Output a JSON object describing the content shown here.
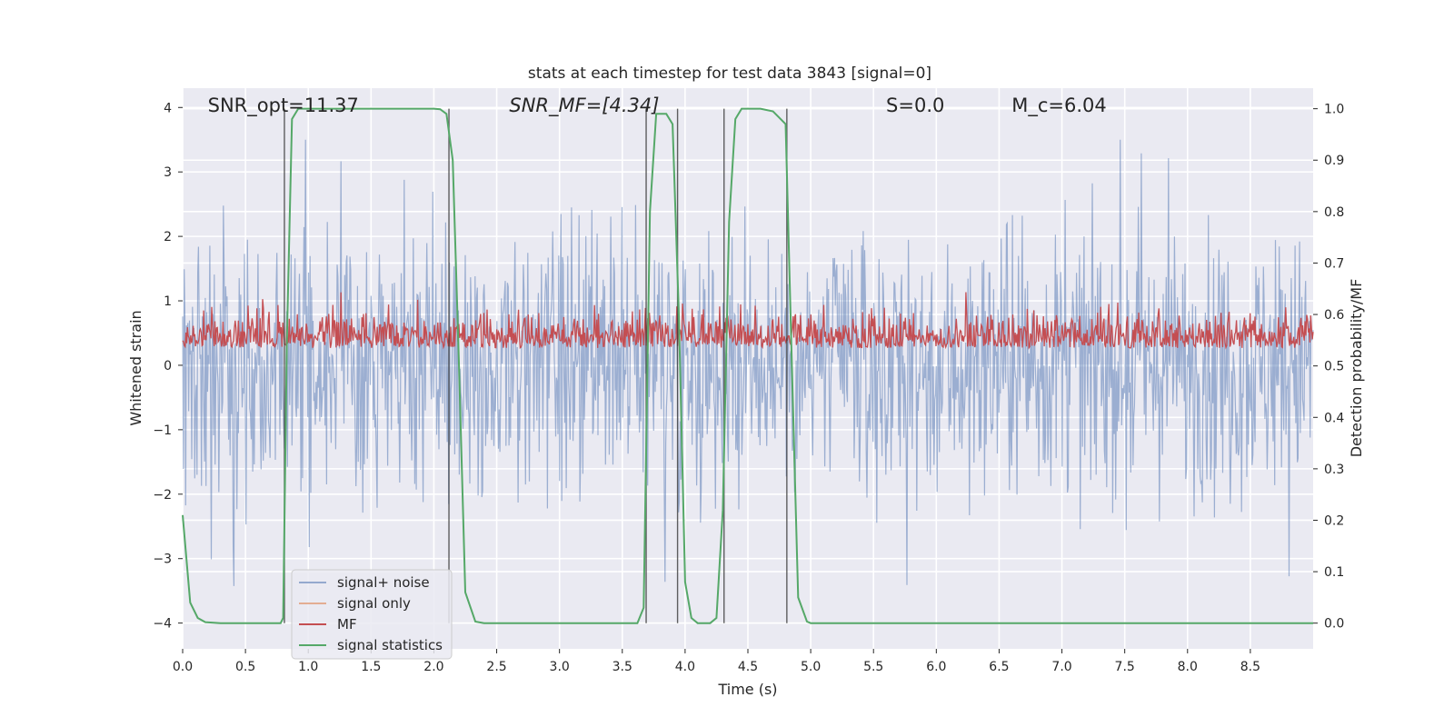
{
  "chart_data": {
    "type": "line",
    "title": "stats at each timestep for test data 3843 [signal=0]",
    "xlabel": "Time (s)",
    "ylabel_left": "Whitened strain",
    "ylabel_right": "Detection probability/MF",
    "xlim": [
      0.0,
      9.0
    ],
    "ylim_left": [
      -4.4,
      4.3
    ],
    "ylim_right": [
      -0.05,
      1.04
    ],
    "x_ticks": [
      0.0,
      0.5,
      1.0,
      1.5,
      2.0,
      2.5,
      3.0,
      3.5,
      4.0,
      4.5,
      5.0,
      5.5,
      6.0,
      6.5,
      7.0,
      7.5,
      8.0,
      8.5
    ],
    "x_tick_labels": [
      "0.0",
      "0.5",
      "1.0",
      "1.5",
      "2.0",
      "2.5",
      "3.0",
      "3.5",
      "4.0",
      "4.5",
      "5.0",
      "5.5",
      "6.0",
      "6.5",
      "7.0",
      "7.5",
      "8.0",
      "8.5"
    ],
    "y_ticks_left": [
      4,
      3,
      2,
      1,
      0,
      -1,
      -2,
      -3,
      -4
    ],
    "y_tick_labels_left": [
      "4",
      "3",
      "2",
      "1",
      "0",
      "−1",
      "−2",
      "−3",
      "−4"
    ],
    "y_ticks_right": [
      1.0,
      0.9,
      0.8,
      0.7,
      0.6,
      0.5,
      0.4,
      0.3,
      0.2,
      0.1,
      0.0
    ],
    "y_tick_labels_right": [
      "1.0",
      "0.9",
      "0.8",
      "0.7",
      "0.6",
      "0.5",
      "0.4",
      "0.3",
      "0.2",
      "0.1",
      "0.0"
    ],
    "annotations": [
      {
        "label": "SNR_opt=11.37",
        "x": 0.2
      },
      {
        "label": "SNR_MF=[4.34]",
        "x": 2.6
      },
      {
        "label": "S=0.0",
        "x": 5.6
      },
      {
        "label": "M_c=6.04",
        "x": 6.6
      }
    ],
    "vertical_lines": [
      0.81,
      2.12,
      3.69,
      3.94,
      4.31,
      4.81
    ],
    "series": [
      {
        "name": "signal+ noise",
        "color": "#4c72b0",
        "axis": "left",
        "envelope": {
          "mean": 0.0,
          "typical_amplitude": 1.4,
          "max_amplitude": 3.9
        }
      },
      {
        "name": "signal only",
        "color": "#dd8452",
        "axis": "left",
        "values": []
      },
      {
        "name": "MF",
        "color": "#c44e52",
        "axis": "right",
        "envelope": {
          "min": 0.5,
          "max": 0.65
        }
      },
      {
        "name": "signal statistics",
        "color": "#55a868",
        "axis": "right",
        "x": [
          0.0,
          0.06,
          0.12,
          0.18,
          0.3,
          0.5,
          0.78,
          0.8,
          0.83,
          0.87,
          0.92,
          1.0,
          1.5,
          2.0,
          2.05,
          2.1,
          2.15,
          2.2,
          2.25,
          2.33,
          2.4,
          3.0,
          3.62,
          3.67,
          3.72,
          3.77,
          3.85,
          3.9,
          3.95,
          4.0,
          4.05,
          4.1,
          4.2,
          4.25,
          4.3,
          4.35,
          4.4,
          4.45,
          4.5,
          4.6,
          4.7,
          4.8,
          4.85,
          4.9,
          4.97,
          5.0,
          5.5,
          6.0,
          7.0,
          8.0,
          9.0
        ],
        "values": [
          0.21,
          0.04,
          0.01,
          0.002,
          0.0,
          0.0,
          0.0,
          0.01,
          0.55,
          0.98,
          1.0,
          1.0,
          1.0,
          1.0,
          0.999,
          0.99,
          0.9,
          0.5,
          0.06,
          0.003,
          0.0,
          0.0,
          0.0,
          0.03,
          0.8,
          0.99,
          0.99,
          0.97,
          0.6,
          0.08,
          0.01,
          0.0,
          0.0,
          0.01,
          0.22,
          0.78,
          0.98,
          1.0,
          1.0,
          1.0,
          0.995,
          0.97,
          0.5,
          0.05,
          0.003,
          0.0,
          0.0,
          0.0,
          0.0,
          0.0,
          0.0
        ]
      }
    ],
    "legend": {
      "placement": "lower-left",
      "entries": [
        "signal+ noise",
        "signal only",
        "MF",
        "signal statistics"
      ]
    },
    "grid": true,
    "background_color": "#eaeaf2"
  }
}
